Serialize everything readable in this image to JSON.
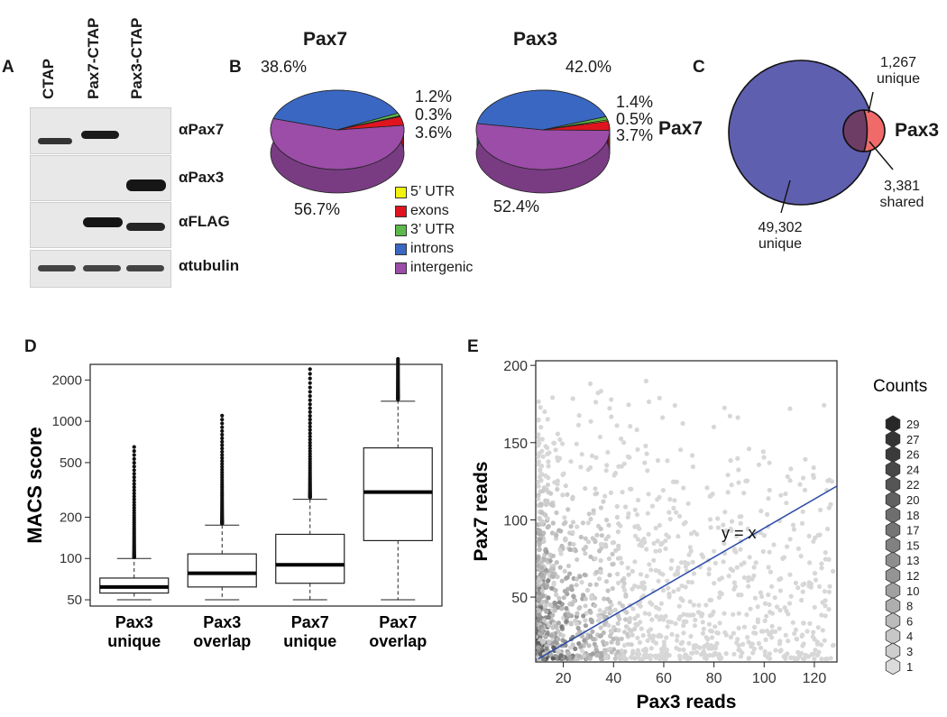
{
  "panel_a": {
    "letter": "A",
    "lanes": [
      "CTAP",
      "Pax7-CTAP",
      "Pax3-CTAP"
    ],
    "antibodies": [
      "αPax7",
      "αPax3",
      "αFLAG",
      "αtubulin"
    ]
  },
  "panel_b": {
    "letter": "B",
    "pies": [
      {
        "title": "Pax7",
        "intergenic": "56.7%",
        "introns": "38.6%",
        "utr3": "1.2%",
        "utr5": "0.3%",
        "exons": "3.6%"
      },
      {
        "title": "Pax3",
        "intergenic": "52.4%",
        "introns": "42.0%",
        "utr3": "1.4%",
        "utr5": "0.5%",
        "exons": "3.7%"
      }
    ],
    "legend": [
      {
        "label": "5’ UTR",
        "color": "#f2f20f"
      },
      {
        "label": "exons",
        "color": "#e0141e"
      },
      {
        "label": "3’ UTR",
        "color": "#5cb84a"
      },
      {
        "label": "introns",
        "color": "#3a67c2"
      },
      {
        "label": "intergenic",
        "color": "#9b4da8"
      }
    ]
  },
  "panel_c": {
    "letter": "C",
    "left_label": "Pax7",
    "right_label": "Pax3",
    "pax3_unique": "1,267",
    "pax3_unique_word": "unique",
    "shared": "3,381",
    "shared_word": "shared",
    "pax7_unique": "49,302",
    "pax7_unique_word": "unique"
  },
  "panel_d": {
    "letter": "D"
  },
  "panel_e": {
    "letter": "E",
    "counts_title": "Counts",
    "fit_label": "y = x"
  },
  "chart_data": [
    {
      "type": "pie",
      "title": "Pax7",
      "labels": [
        "intergenic",
        "introns",
        "3’ UTR",
        "5’ UTR",
        "exons"
      ],
      "values": [
        56.7,
        38.6,
        1.2,
        0.3,
        3.6
      ],
      "colors": [
        "#9b4da8",
        "#3a67c2",
        "#5cb84a",
        "#f2f20f",
        "#e0141e"
      ]
    },
    {
      "type": "pie",
      "title": "Pax3",
      "labels": [
        "intergenic",
        "introns",
        "3’ UTR",
        "5’ UTR",
        "exons"
      ],
      "values": [
        52.4,
        42.0,
        1.4,
        0.5,
        3.7
      ],
      "colors": [
        "#9b4da8",
        "#3a67c2",
        "#5cb84a",
        "#f2f20f",
        "#e0141e"
      ]
    },
    {
      "type": "boxplot",
      "ylabel": "MACS score",
      "yscale": "log",
      "ylim": [
        45,
        2600
      ],
      "yticks": [
        50,
        100,
        200,
        500,
        1000,
        2000
      ],
      "categories": [
        "Pax3\nunique",
        "Pax3\noverlap",
        "Pax7\nunique",
        "Pax7\noverlap"
      ],
      "boxes": [
        {
          "min": 50,
          "q1": 56,
          "median": 62,
          "q3": 72,
          "whisker_hi": 100,
          "outliers_from": 102,
          "outliers_to": 650
        },
        {
          "min": 50,
          "q1": 62,
          "median": 78,
          "q3": 108,
          "whisker_hi": 175,
          "outliers_from": 180,
          "outliers_to": 1100
        },
        {
          "min": 50,
          "q1": 66,
          "median": 90,
          "q3": 150,
          "whisker_hi": 270,
          "outliers_from": 280,
          "outliers_to": 2400
        },
        {
          "min": 50,
          "q1": 135,
          "median": 305,
          "q3": 640,
          "whisker_hi": 1400,
          "outliers_from": 1450,
          "outliers_to": 2850
        }
      ]
    },
    {
      "type": "scatter",
      "xlabel": "Pax3 reads",
      "ylabel": "Pax7 reads",
      "xlim": [
        9,
        129
      ],
      "ylim": [
        8,
        203
      ],
      "xticks": [
        20,
        40,
        60,
        80,
        100,
        120
      ],
      "yticks": [
        50,
        100,
        150,
        200
      ],
      "reference_line": {
        "label": "y = x",
        "slope": 1,
        "intercept": 0,
        "color": "#2a4aa8"
      },
      "legend": {
        "title": "Counts",
        "levels": [
          29,
          27,
          26,
          24,
          22,
          20,
          18,
          17,
          15,
          13,
          12,
          10,
          8,
          6,
          4,
          3,
          1
        ]
      }
    }
  ]
}
